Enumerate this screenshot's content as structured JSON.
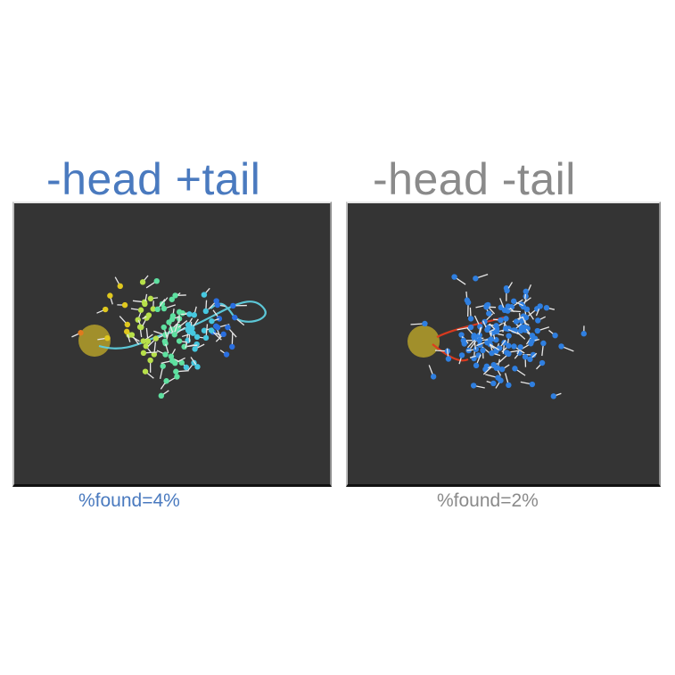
{
  "panels": [
    {
      "title": "-head +tail",
      "caption": "%found=4%",
      "title_color": "#4a7abf",
      "background": "#343434",
      "target_color": "#b5a02a",
      "trail_color": "#5fd0e0",
      "particle_colors": [
        "#e07a1e",
        "#e0c81e",
        "#b7e04a",
        "#5ee0a0",
        "#46c8e0",
        "#2a6fe0",
        "#0a1ee0"
      ]
    },
    {
      "title": "-head -tail",
      "caption": "%found=2%",
      "title_color": "#8a8a8a",
      "background": "#343434",
      "target_color": "#b5a02a",
      "trail_color": "#e03a1e",
      "particle_colors": [
        "#2f7fe0"
      ]
    }
  ]
}
